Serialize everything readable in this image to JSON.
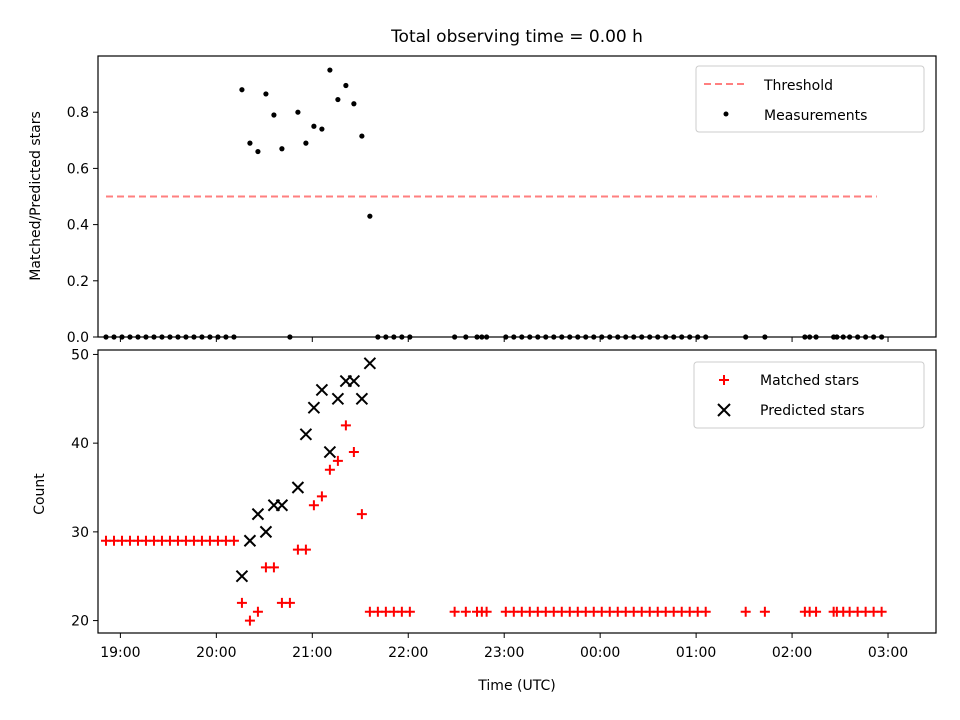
{
  "chart_data": [
    {
      "type": "scatter",
      "title": "Total observing time = 0.00 h",
      "ylabel": "Matched/Predicted stars",
      "xlabel": "",
      "xlim": [
        "18:46",
        "03:30"
      ],
      "ylim": [
        0,
        1.0
      ],
      "x_ticks": [
        "19:00",
        "20:00",
        "21:00",
        "22:00",
        "23:00",
        "00:00",
        "01:00",
        "02:00",
        "03:00"
      ],
      "y_ticks": [
        "0.0",
        "0.2",
        "0.4",
        "0.6",
        "0.8"
      ],
      "legend": {
        "placement": "top-right",
        "entries": [
          "Threshold",
          "Measurements"
        ]
      },
      "threshold": {
        "name": "Threshold",
        "value": 0.5,
        "x_range": [
          "18:51",
          "02:53"
        ],
        "color": "#ff7f7f",
        "style": "dashed"
      },
      "series": [
        {
          "name": "Measurements",
          "color": "#000000",
          "marker": "dot",
          "points": [
            [
              "18:51",
              0
            ],
            [
              "18:56",
              0
            ],
            [
              "19:01",
              0
            ],
            [
              "19:06",
              0
            ],
            [
              "19:11",
              0
            ],
            [
              "19:16",
              0
            ],
            [
              "19:21",
              0
            ],
            [
              "19:26",
              0
            ],
            [
              "19:31",
              0
            ],
            [
              "19:36",
              0
            ],
            [
              "19:41",
              0
            ],
            [
              "19:46",
              0
            ],
            [
              "19:51",
              0
            ],
            [
              "19:56",
              0
            ],
            [
              "20:01",
              0
            ],
            [
              "20:06",
              0
            ],
            [
              "20:11",
              0
            ],
            [
              "20:16",
              0.88
            ],
            [
              "20:21",
              0.69
            ],
            [
              "20:26",
              0.66
            ],
            [
              "20:31",
              0.865
            ],
            [
              "20:36",
              0.79
            ],
            [
              "20:41",
              0.67
            ],
            [
              "20:46",
              0
            ],
            [
              "20:51",
              0.8
            ],
            [
              "20:56",
              0.69
            ],
            [
              "21:01",
              0.75
            ],
            [
              "21:06",
              0.74
            ],
            [
              "21:11",
              0.95
            ],
            [
              "21:16",
              0.845
            ],
            [
              "21:21",
              0.895
            ],
            [
              "21:26",
              0.83
            ],
            [
              "21:31",
              0.715
            ],
            [
              "21:36",
              0.43
            ],
            [
              "21:41",
              0
            ],
            [
              "21:46",
              0
            ],
            [
              "21:51",
              0
            ],
            [
              "21:56",
              0
            ],
            [
              "22:01",
              0
            ],
            [
              "22:29",
              0
            ],
            [
              "22:36",
              0
            ],
            [
              "22:43",
              0
            ],
            [
              "22:46",
              0
            ],
            [
              "22:49",
              0
            ],
            [
              "23:01",
              0
            ],
            [
              "23:06",
              0
            ],
            [
              "23:11",
              0
            ],
            [
              "23:16",
              0
            ],
            [
              "23:21",
              0
            ],
            [
              "23:26",
              0
            ],
            [
              "23:31",
              0
            ],
            [
              "23:36",
              0
            ],
            [
              "23:41",
              0
            ],
            [
              "23:46",
              0
            ],
            [
              "23:51",
              0
            ],
            [
              "23:56",
              0
            ],
            [
              "00:01",
              0
            ],
            [
              "00:06",
              0
            ],
            [
              "00:11",
              0
            ],
            [
              "00:16",
              0
            ],
            [
              "00:21",
              0
            ],
            [
              "00:26",
              0
            ],
            [
              "00:31",
              0
            ],
            [
              "00:36",
              0
            ],
            [
              "00:41",
              0
            ],
            [
              "00:46",
              0
            ],
            [
              "00:51",
              0
            ],
            [
              "00:56",
              0
            ],
            [
              "01:01",
              0
            ],
            [
              "01:06",
              0
            ],
            [
              "01:31",
              0
            ],
            [
              "01:43",
              0
            ],
            [
              "02:08",
              0
            ],
            [
              "02:11",
              0
            ],
            [
              "02:15",
              0
            ],
            [
              "02:26",
              0
            ],
            [
              "02:28",
              0
            ],
            [
              "02:32",
              0
            ],
            [
              "02:36",
              0
            ],
            [
              "02:41",
              0
            ],
            [
              "02:46",
              0
            ],
            [
              "02:51",
              0
            ],
            [
              "02:56",
              0
            ]
          ]
        }
      ]
    },
    {
      "type": "scatter",
      "title": "",
      "ylabel": "Count",
      "xlabel": "Time (UTC)",
      "xlim": [
        "18:46",
        "03:30"
      ],
      "ylim": [
        18.6,
        50.5
      ],
      "x_ticks": [
        "19:00",
        "20:00",
        "21:00",
        "22:00",
        "23:00",
        "00:00",
        "01:00",
        "02:00",
        "03:00"
      ],
      "y_ticks": [
        "20",
        "30",
        "40",
        "50"
      ],
      "legend": {
        "placement": "top-right",
        "entries": [
          "Matched stars",
          "Predicted stars"
        ]
      },
      "series": [
        {
          "name": "Matched stars",
          "color": "#ff0000",
          "marker": "plus",
          "points": [
            [
              "18:51",
              29
            ],
            [
              "18:56",
              29
            ],
            [
              "19:01",
              29
            ],
            [
              "19:06",
              29
            ],
            [
              "19:11",
              29
            ],
            [
              "19:16",
              29
            ],
            [
              "19:21",
              29
            ],
            [
              "19:26",
              29
            ],
            [
              "19:31",
              29
            ],
            [
              "19:36",
              29
            ],
            [
              "19:41",
              29
            ],
            [
              "19:46",
              29
            ],
            [
              "19:51",
              29
            ],
            [
              "19:56",
              29
            ],
            [
              "20:01",
              29
            ],
            [
              "20:06",
              29
            ],
            [
              "20:11",
              29
            ],
            [
              "20:16",
              22
            ],
            [
              "20:21",
              20
            ],
            [
              "20:26",
              21
            ],
            [
              "20:31",
              26
            ],
            [
              "20:36",
              26
            ],
            [
              "20:41",
              22
            ],
            [
              "20:46",
              22
            ],
            [
              "20:51",
              28
            ],
            [
              "20:56",
              28
            ],
            [
              "21:01",
              33
            ],
            [
              "21:06",
              34
            ],
            [
              "21:11",
              37
            ],
            [
              "21:16",
              38
            ],
            [
              "21:21",
              42
            ],
            [
              "21:26",
              39
            ],
            [
              "21:31",
              32
            ],
            [
              "21:36",
              21
            ],
            [
              "21:41",
              21
            ],
            [
              "21:46",
              21
            ],
            [
              "21:51",
              21
            ],
            [
              "21:56",
              21
            ],
            [
              "22:01",
              21
            ],
            [
              "22:29",
              21
            ],
            [
              "22:36",
              21
            ],
            [
              "22:43",
              21
            ],
            [
              "22:46",
              21
            ],
            [
              "22:49",
              21
            ],
            [
              "23:01",
              21
            ],
            [
              "23:06",
              21
            ],
            [
              "23:11",
              21
            ],
            [
              "23:16",
              21
            ],
            [
              "23:21",
              21
            ],
            [
              "23:26",
              21
            ],
            [
              "23:31",
              21
            ],
            [
              "23:36",
              21
            ],
            [
              "23:41",
              21
            ],
            [
              "23:46",
              21
            ],
            [
              "23:51",
              21
            ],
            [
              "23:56",
              21
            ],
            [
              "00:01",
              21
            ],
            [
              "00:06",
              21
            ],
            [
              "00:11",
              21
            ],
            [
              "00:16",
              21
            ],
            [
              "00:21",
              21
            ],
            [
              "00:26",
              21
            ],
            [
              "00:31",
              21
            ],
            [
              "00:36",
              21
            ],
            [
              "00:41",
              21
            ],
            [
              "00:46",
              21
            ],
            [
              "00:51",
              21
            ],
            [
              "00:56",
              21
            ],
            [
              "01:01",
              21
            ],
            [
              "01:06",
              21
            ],
            [
              "01:31",
              21
            ],
            [
              "01:43",
              21
            ],
            [
              "02:08",
              21
            ],
            [
              "02:11",
              21
            ],
            [
              "02:15",
              21
            ],
            [
              "02:26",
              21
            ],
            [
              "02:28",
              21
            ],
            [
              "02:32",
              21
            ],
            [
              "02:36",
              21
            ],
            [
              "02:41",
              21
            ],
            [
              "02:46",
              21
            ],
            [
              "02:51",
              21
            ],
            [
              "02:56",
              21
            ]
          ]
        },
        {
          "name": "Predicted stars",
          "color": "#000000",
          "marker": "x",
          "points": [
            [
              "20:16",
              25
            ],
            [
              "20:21",
              29
            ],
            [
              "20:26",
              32
            ],
            [
              "20:31",
              30
            ],
            [
              "20:36",
              33
            ],
            [
              "20:41",
              33
            ],
            [
              "20:51",
              35
            ],
            [
              "20:56",
              41
            ],
            [
              "21:01",
              44
            ],
            [
              "21:06",
              46
            ],
            [
              "21:11",
              39
            ],
            [
              "21:16",
              45
            ],
            [
              "21:21",
              47
            ],
            [
              "21:26",
              47
            ],
            [
              "21:31",
              45
            ],
            [
              "21:36",
              49
            ]
          ]
        }
      ]
    }
  ]
}
